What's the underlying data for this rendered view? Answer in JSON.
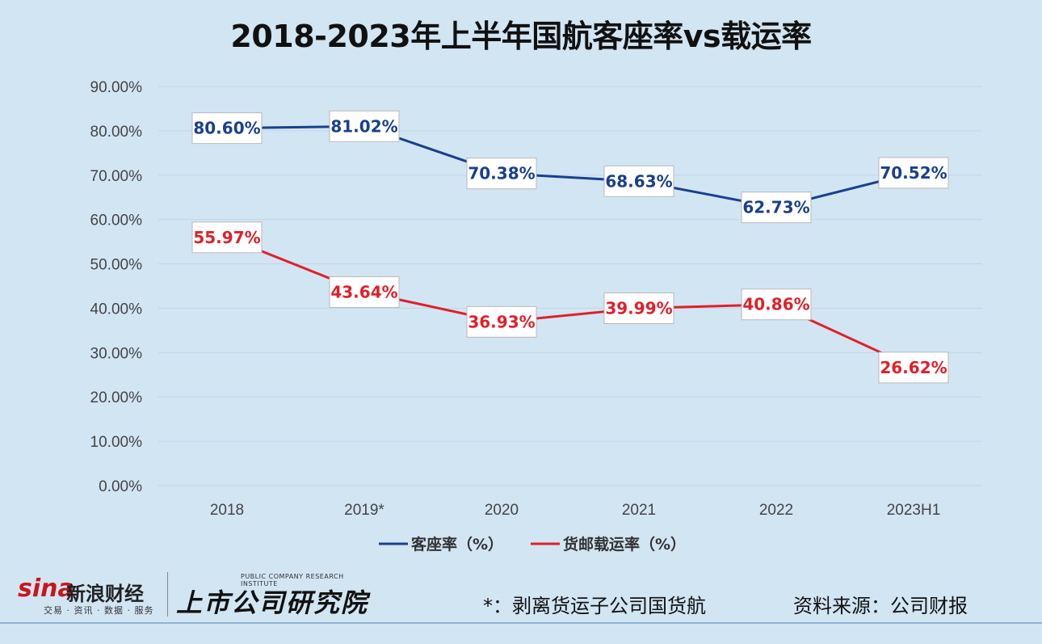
{
  "chart_data": {
    "type": "line",
    "title": "2018-2023年上半年国航客座率vs载运率",
    "categories": [
      "2018",
      "2019*",
      "2020",
      "2021",
      "2022",
      "2023H1"
    ],
    "y_ticks": [
      "0.00%",
      "10.00%",
      "20.00%",
      "30.00%",
      "40.00%",
      "50.00%",
      "60.00%",
      "70.00%",
      "80.00%",
      "90.00%"
    ],
    "ylim": [
      0,
      90
    ],
    "grid": true,
    "legend_position": "bottom",
    "series": [
      {
        "name": "客座率（%）",
        "color": "#1a3f8f",
        "values": [
          80.6,
          81.02,
          70.38,
          68.63,
          62.73,
          70.52
        ],
        "labels": [
          "80.60%",
          "81.02%",
          "70.38%",
          "68.63%",
          "62.73%",
          "70.52%"
        ]
      },
      {
        "name": "货邮载运率（%）",
        "color": "#e0202a",
        "values": [
          55.97,
          43.64,
          36.93,
          39.99,
          40.86,
          26.62
        ],
        "labels": [
          "55.97%",
          "43.64%",
          "36.93%",
          "39.99%",
          "40.86%",
          "26.62%"
        ]
      }
    ]
  },
  "footer": {
    "sina_word": "sina",
    "sina_cn": "新浪财经",
    "sina_sub": "交易 · 资讯 · 数据 · 服务",
    "institute_en": "PUBLIC COMPANY RESEARCH INSTITUTE",
    "institute_cn": "上市公司研究院",
    "footnote": "*：剥离货运子公司国货航",
    "source": "资料来源：公司财报"
  }
}
